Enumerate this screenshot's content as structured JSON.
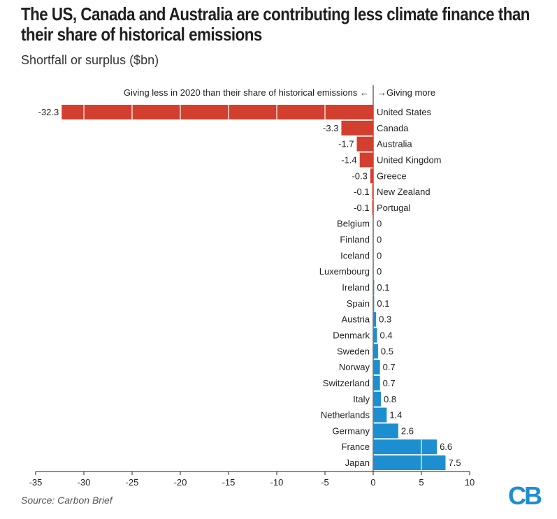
{
  "title": "The US, Canada and Australia are contributing less climate finance than their share of historical emissions",
  "subtitle": "Shortfall or surplus ($bn)",
  "source": "Source: Carbon Brief",
  "logo": "CB",
  "colors": {
    "negative": "#d33f2f",
    "positive": "#1d8fd0",
    "axis": "#222222"
  },
  "chart_data": {
    "type": "bar",
    "orientation": "horizontal",
    "title": "The US, Canada and Australia are contributing less climate finance than their share of historical emissions",
    "subtitle": "Shortfall or surplus ($bn)",
    "annotation_left": "Giving less in 2020 than their share of historical emissions ←",
    "annotation_right": "→Giving more",
    "categories": [
      "United States",
      "Canada",
      "Australia",
      "United Kingdom",
      "Greece",
      "New Zealand",
      "Portugal",
      "Belgium",
      "Finland",
      "Iceland",
      "Luxembourg",
      "Ireland",
      "Spain",
      "Austria",
      "Denmark",
      "Sweden",
      "Norway",
      "Switzerland",
      "Italy",
      "Netherlands",
      "Germany",
      "France",
      "Japan"
    ],
    "values": [
      -32.3,
      -3.3,
      -1.7,
      -1.4,
      -0.3,
      -0.1,
      -0.1,
      0,
      0,
      0,
      0,
      0.1,
      0.1,
      0.3,
      0.4,
      0.5,
      0.7,
      0.7,
      0.8,
      1.4,
      2.6,
      6.6,
      7.5
    ],
    "value_labels": [
      "-32.3",
      "-3.3",
      "-1.7",
      "-1.4",
      "-0.3",
      "-0.1",
      "-0.1",
      "0",
      "0",
      "0",
      "0",
      "0.1",
      "0.1",
      "0.3",
      "0.4",
      "0.5",
      "0.7",
      "0.7",
      "0.8",
      "1.4",
      "2.6",
      "6.6",
      "7.5"
    ],
    "xlim": [
      -35,
      10
    ],
    "xticks": [
      -35,
      -30,
      -25,
      -20,
      -15,
      -10,
      -5,
      0,
      5,
      10
    ],
    "xlabel": "",
    "ylabel": "",
    "grid": false
  }
}
